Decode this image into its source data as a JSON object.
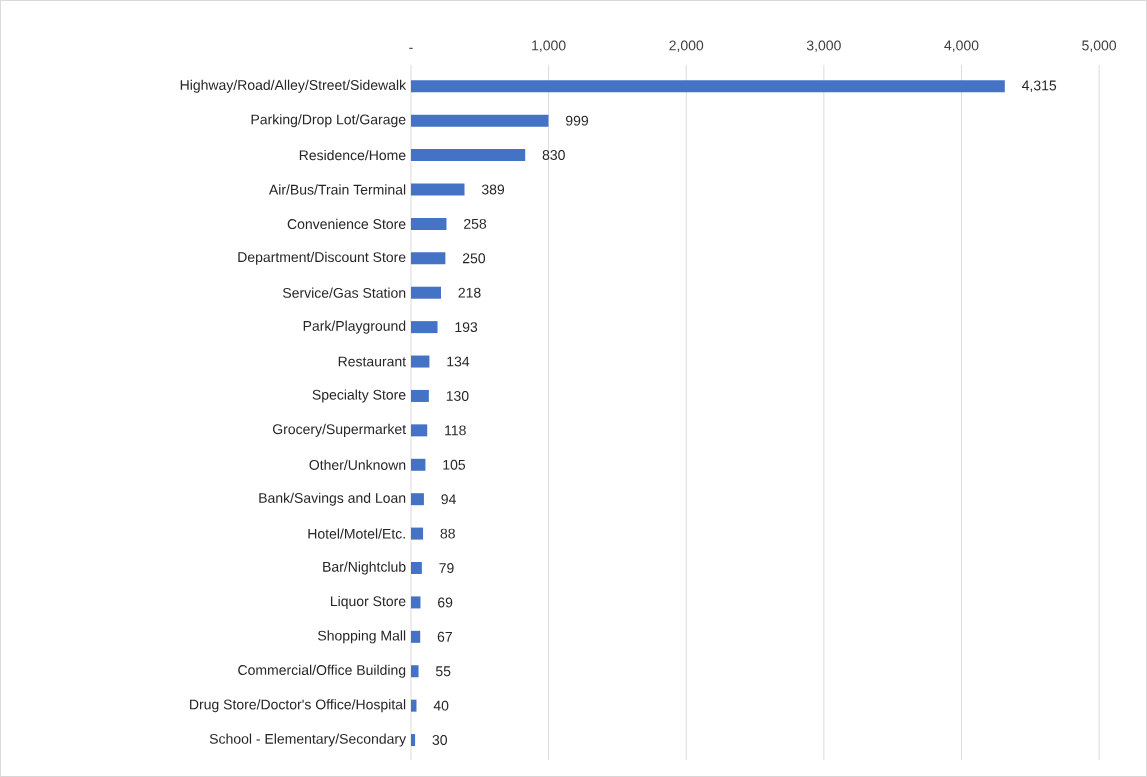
{
  "chart_data": {
    "type": "bar",
    "orientation": "horizontal",
    "categories": [
      "Highway/Road/Alley/Street/Sidewalk",
      "Parking/Drop Lot/Garage",
      "Residence/Home",
      "Air/Bus/Train Terminal",
      "Convenience Store",
      "Department/Discount Store",
      "Service/Gas Station",
      "Park/Playground",
      "Restaurant",
      "Specialty Store",
      "Grocery/Supermarket",
      "Other/Unknown",
      "Bank/Savings and Loan",
      "Hotel/Motel/Etc.",
      "Bar/Nightclub",
      "Liquor Store",
      "Shopping Mall",
      "Commercial/Office Building",
      "Drug Store/Doctor's Office/Hospital",
      "School - Elementary/Secondary"
    ],
    "values": [
      4315,
      999,
      830,
      389,
      258,
      250,
      218,
      193,
      134,
      130,
      118,
      105,
      94,
      88,
      79,
      69,
      67,
      55,
      40,
      30
    ],
    "value_labels": [
      "4,315",
      "999",
      "830",
      "389",
      "258",
      "250",
      "218",
      "193",
      "134",
      "130",
      "118",
      "105",
      "94",
      "88",
      "79",
      "69",
      "67",
      "55",
      "40",
      "30"
    ],
    "color": "#4472c4",
    "xlim": [
      0,
      5000
    ],
    "xticks": [
      {
        "value": 0,
        "label": "-"
      },
      {
        "value": 1000,
        "label": "1,000"
      },
      {
        "value": 2000,
        "label": "2,000"
      },
      {
        "value": 3000,
        "label": "3,000"
      },
      {
        "value": 4000,
        "label": "4,000"
      },
      {
        "value": 5000,
        "label": "5,000"
      }
    ],
    "grid": "x"
  }
}
